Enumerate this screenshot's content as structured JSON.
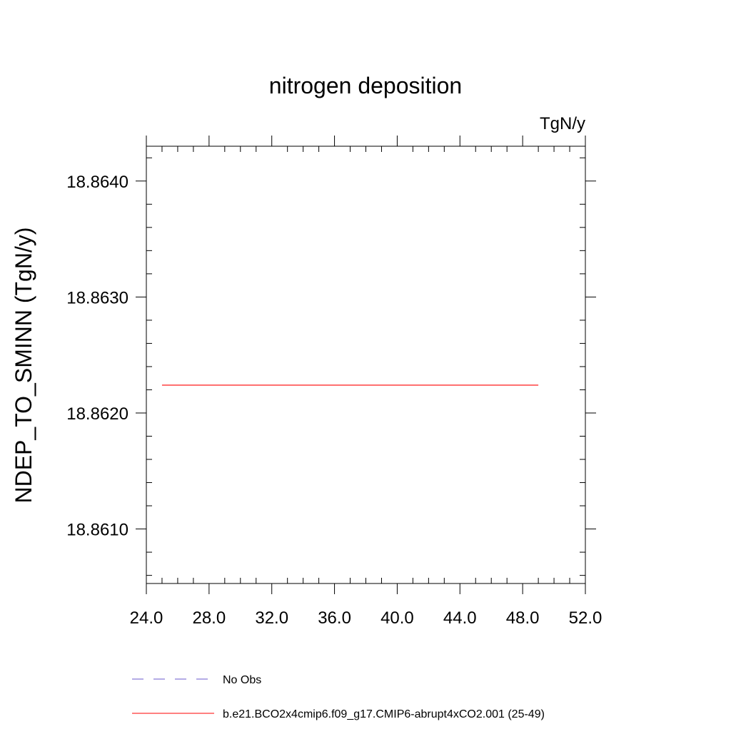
{
  "chart_data": {
    "type": "line",
    "title": "nitrogen deposition",
    "units_label": "TgN/y",
    "xlabel": "",
    "ylabel": "NDEP_TO_SMINN  (TgN/y)",
    "xlim": [
      24.0,
      52.0
    ],
    "ylim": [
      18.86053,
      18.8643
    ],
    "x_ticks": [
      24.0,
      28.0,
      32.0,
      36.0,
      40.0,
      44.0,
      48.0,
      52.0
    ],
    "x_tick_labels": [
      "24.0",
      "28.0",
      "32.0",
      "36.0",
      "40.0",
      "44.0",
      "48.0",
      "52.0"
    ],
    "x_minor_step": 1.0,
    "y_ticks": [
      18.861,
      18.862,
      18.863,
      18.864
    ],
    "y_tick_labels": [
      "18.8610",
      "18.8620",
      "18.8630",
      "18.8640"
    ],
    "y_minor_step": 0.0002,
    "grid": false,
    "legend_position": "bottom",
    "series": [
      {
        "name": "No Obs",
        "color": "#6a5acd",
        "dash": "dashed",
        "x": [],
        "y": []
      },
      {
        "name": "b.e21.BCO2x4cmip6.f09_g17.CMIP6-abrupt4xCO2.001 (25-49)",
        "color": "#ff0000",
        "dash": "solid",
        "x": [
          25.0,
          49.0
        ],
        "y": [
          18.86224,
          18.86224
        ]
      }
    ]
  }
}
